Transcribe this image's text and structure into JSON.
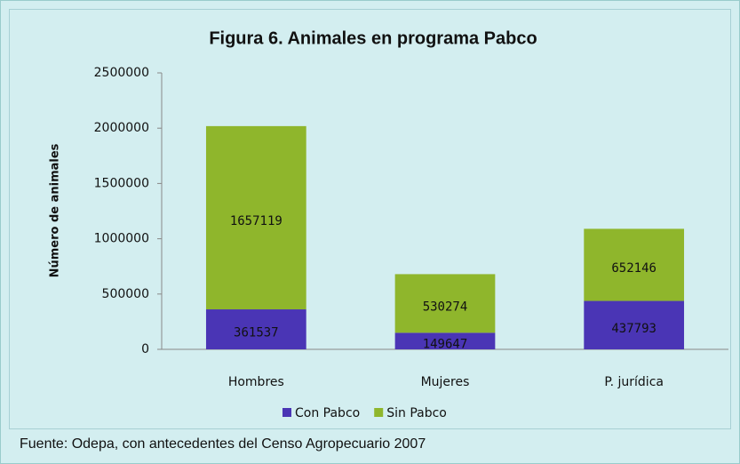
{
  "chart_data": {
    "type": "stacked_bar",
    "title": "Figura 6. Animales en programa Pabco",
    "y_label": "Número de animales",
    "categories": [
      "Hombres",
      "Mujeres",
      "P. jurídica"
    ],
    "series": [
      {
        "name": "Con Pabco",
        "color": "#4a35b5",
        "values": [
          361537,
          149647,
          437793
        ]
      },
      {
        "name": "Sin Pabco",
        "color": "#8fb62c",
        "values": [
          1657119,
          530274,
          652146
        ]
      }
    ],
    "ylim": [
      0,
      2500000
    ],
    "yticks": [
      0,
      500000,
      1000000,
      1500000,
      2000000,
      2500000
    ],
    "grid": false,
    "legend": "bottom",
    "source": "Fuente: Odepa, con antecedentes del Censo Agropecuario 2007"
  }
}
